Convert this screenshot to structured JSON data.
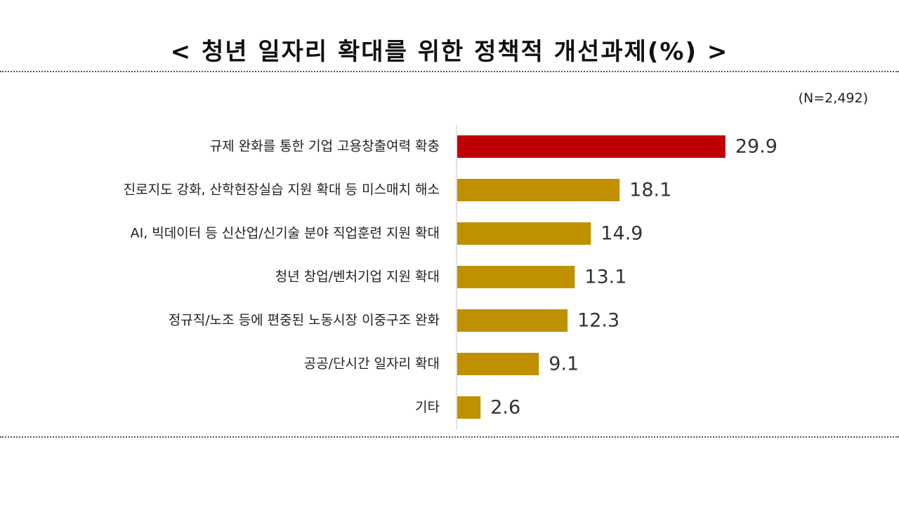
{
  "title": "< 청년 일자리 확대를 위한 정책적 개선과제(%) >",
  "note": "(N=2,492)",
  "chart_data": {
    "type": "bar",
    "orientation": "horizontal",
    "title": "< 청년 일자리 확대를 위한 정책적 개선과제(%) >",
    "categories": [
      "규제 완화를 통한 기업 고용창출여력 확충",
      "진로지도 강화, 산학현장실습 지원 확대 등 미스매치 해소",
      "AI, 빅데이터 등 신산업/신기술 분야 직업훈련 지원 확대",
      "청년 창업/벤처기업 지원 확대",
      "정규직/노조 등에 편중된 노동시장 이중구조 완화",
      "공공/단시간 일자리 확대",
      "기타"
    ],
    "values": [
      29.9,
      18.1,
      14.9,
      13.1,
      12.3,
      9.1,
      2.6
    ],
    "value_labels": [
      "29.9",
      "18.1",
      "14.9",
      "13.1",
      "12.3",
      "9.1",
      "2.6"
    ],
    "xlim": [
      0,
      35
    ],
    "grid": false,
    "legend": "none",
    "colors": {
      "highlight": "#C00000",
      "bar": "#BF9000",
      "axis": "#D9D9D9"
    }
  }
}
